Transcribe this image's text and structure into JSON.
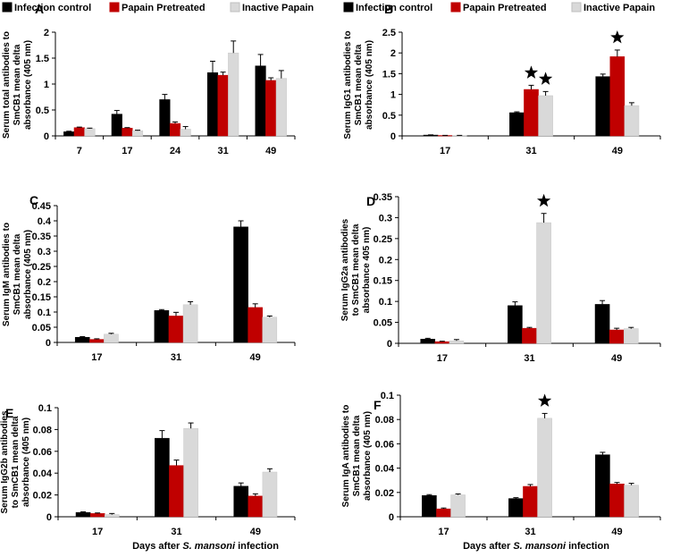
{
  "legend": {
    "entries": [
      {
        "label": "Infection control",
        "color": "#000000"
      },
      {
        "label": "Papain Pretreated",
        "color": "#c00000"
      },
      {
        "label": "Inactive Papain",
        "color": "#d9d9d9"
      }
    ]
  },
  "x_title": {
    "left": {
      "pre": "Days after ",
      "italic": "S. mansoni",
      "post": " infection"
    },
    "right": {
      "pre": "Days after ",
      "italic": "S. mansoni",
      "post": " infection"
    }
  },
  "chart_data": [
    {
      "panel": "A",
      "type": "bar",
      "ylabel": [
        "Serum total antibodies to",
        "SmCB1 mean delta",
        "absorbance (405 nm)"
      ],
      "ylim": [
        0,
        2
      ],
      "yticks": [
        0,
        0.5,
        1,
        1.5,
        2
      ],
      "ytick_labels": [
        "0",
        "0.5",
        "1",
        "1.5",
        "2"
      ],
      "categories": [
        "7",
        "17",
        "24",
        "31",
        "49"
      ],
      "series": [
        {
          "name": "Infection control",
          "values": [
            0.08,
            0.42,
            0.7,
            1.22,
            1.35
          ],
          "errors": [
            0.01,
            0.07,
            0.1,
            0.22,
            0.22
          ]
        },
        {
          "name": "Papain Pretreated",
          "values": [
            0.16,
            0.15,
            0.24,
            1.17,
            1.07
          ],
          "errors": [
            0.01,
            0.01,
            0.03,
            0.06,
            0.05
          ]
        },
        {
          "name": "Inactive Papain",
          "values": [
            0.14,
            0.1,
            0.13,
            1.6,
            1.11
          ],
          "errors": [
            0.01,
            0.01,
            0.05,
            0.23,
            0.15
          ]
        }
      ],
      "stars": []
    },
    {
      "panel": "B",
      "type": "bar",
      "ylabel": [
        "Serum IgG1 antibodies to",
        "SmCB1 mean delta",
        "absorbance (405 nm)"
      ],
      "ylim": [
        0,
        2.5
      ],
      "yticks": [
        0,
        0.5,
        1,
        1.5,
        2,
        2.5
      ],
      "ytick_labels": [
        "0",
        "0.5",
        "1",
        "1.5",
        "2",
        "2.5"
      ],
      "categories": [
        "17",
        "31",
        "49"
      ],
      "series": [
        {
          "name": "Infection control",
          "values": [
            0.02,
            0.56,
            1.43
          ],
          "errors": [
            0.005,
            0.02,
            0.06
          ]
        },
        {
          "name": "Papain Pretreated",
          "values": [
            0.01,
            1.12,
            1.91
          ],
          "errors": [
            0.003,
            0.1,
            0.16
          ]
        },
        {
          "name": "Inactive Papain",
          "values": [
            0.01,
            0.97,
            0.73
          ],
          "errors": [
            0.003,
            0.1,
            0.07
          ]
        }
      ],
      "stars": [
        {
          "category": 1,
          "series": 1
        },
        {
          "category": 1,
          "series": 2
        },
        {
          "category": 2,
          "series": 1
        }
      ]
    },
    {
      "panel": "C",
      "type": "bar",
      "ylabel": [
        "Serum IgM antibodies to",
        "SmCB1 mean delta",
        "absorbance (405 nm)"
      ],
      "ylim": [
        0,
        0.45
      ],
      "yticks": [
        0,
        0.05,
        0.1,
        0.15,
        0.2,
        0.25,
        0.3,
        0.35,
        0.4,
        0.45
      ],
      "ytick_labels": [
        "0",
        "0.05",
        "0.1",
        "0.15",
        "0.2",
        "0.25",
        "0.3",
        "0.35",
        "0.4",
        "0.45"
      ],
      "categories": [
        "17",
        "31",
        "49"
      ],
      "series": [
        {
          "name": "Infection control",
          "values": [
            0.017,
            0.105,
            0.38
          ],
          "errors": [
            0.002,
            0.003,
            0.02
          ]
        },
        {
          "name": "Papain Pretreated",
          "values": [
            0.01,
            0.087,
            0.115
          ],
          "errors": [
            0.002,
            0.012,
            0.012
          ]
        },
        {
          "name": "Inactive Papain",
          "values": [
            0.027,
            0.124,
            0.083
          ],
          "errors": [
            0.003,
            0.01,
            0.004
          ]
        }
      ],
      "stars": []
    },
    {
      "panel": "D",
      "type": "bar",
      "ylabel": [
        "Serum IgG2a antibodies",
        "to SmCB1 mean delta",
        "absorbance 405 nm)"
      ],
      "ylim": [
        0,
        0.35
      ],
      "yticks": [
        0,
        0.05,
        0.1,
        0.15,
        0.2,
        0.25,
        0.3,
        0.35
      ],
      "ytick_labels": [
        "0",
        "0.05",
        "0.1",
        "0.15",
        "0.2",
        "0.25",
        "0.3",
        "0.35"
      ],
      "categories": [
        "17",
        "31",
        "49"
      ],
      "series": [
        {
          "name": "Infection control",
          "values": [
            0.01,
            0.09,
            0.093
          ],
          "errors": [
            0.002,
            0.009,
            0.009
          ]
        },
        {
          "name": "Papain Pretreated",
          "values": [
            0.004,
            0.036,
            0.032
          ],
          "errors": [
            0.001,
            0.002,
            0.004
          ]
        },
        {
          "name": "Inactive Papain",
          "values": [
            0.006,
            0.288,
            0.035
          ],
          "errors": [
            0.003,
            0.022,
            0.003
          ]
        }
      ],
      "stars": [
        {
          "category": 1,
          "series": 2
        }
      ]
    },
    {
      "panel": "E",
      "type": "bar",
      "ylabel": [
        "Serum IgG2b antibodies",
        "to SmCB1 mean delta",
        "absorbance (405 nm)"
      ],
      "ylim": [
        0,
        0.1
      ],
      "yticks": [
        0,
        0.02,
        0.04,
        0.06,
        0.08,
        0.1
      ],
      "ytick_labels": [
        "0",
        "0.02",
        "0.04",
        "0.06",
        "0.08",
        "0.1"
      ],
      "categories": [
        "17",
        "31",
        "49"
      ],
      "series": [
        {
          "name": "Infection control",
          "values": [
            0.004,
            0.072,
            0.028
          ],
          "errors": [
            0.0005,
            0.007,
            0.003
          ]
        },
        {
          "name": "Papain Pretreated",
          "values": [
            0.003,
            0.047,
            0.019
          ],
          "errors": [
            0.0005,
            0.005,
            0.002
          ]
        },
        {
          "name": "Inactive Papain",
          "values": [
            0.002,
            0.081,
            0.041
          ],
          "errors": [
            0.001,
            0.005,
            0.003
          ]
        }
      ],
      "stars": []
    },
    {
      "panel": "F",
      "type": "bar",
      "ylabel": [
        "Serum IgA antibodies to",
        "SmCB1 mean delta",
        "absorbance (405 nm)"
      ],
      "ylim": [
        0,
        0.1
      ],
      "yticks": [
        0,
        0.02,
        0.04,
        0.06,
        0.08,
        0.1
      ],
      "ytick_labels": [
        "0",
        "0.02",
        "0.04",
        "0.06",
        "0.08",
        "0.1"
      ],
      "categories": [
        "17",
        "31",
        "49"
      ],
      "series": [
        {
          "name": "Infection control",
          "values": [
            0.0175,
            0.015,
            0.051
          ],
          "errors": [
            0.0007,
            0.0007,
            0.002
          ]
        },
        {
          "name": "Papain Pretreated",
          "values": [
            0.0065,
            0.025,
            0.027
          ],
          "errors": [
            0.0007,
            0.0015,
            0.0012
          ]
        },
        {
          "name": "Inactive Papain",
          "values": [
            0.018,
            0.081,
            0.026
          ],
          "errors": [
            0.0008,
            0.004,
            0.0015
          ]
        }
      ],
      "stars": [
        {
          "category": 1,
          "series": 2
        }
      ]
    }
  ]
}
